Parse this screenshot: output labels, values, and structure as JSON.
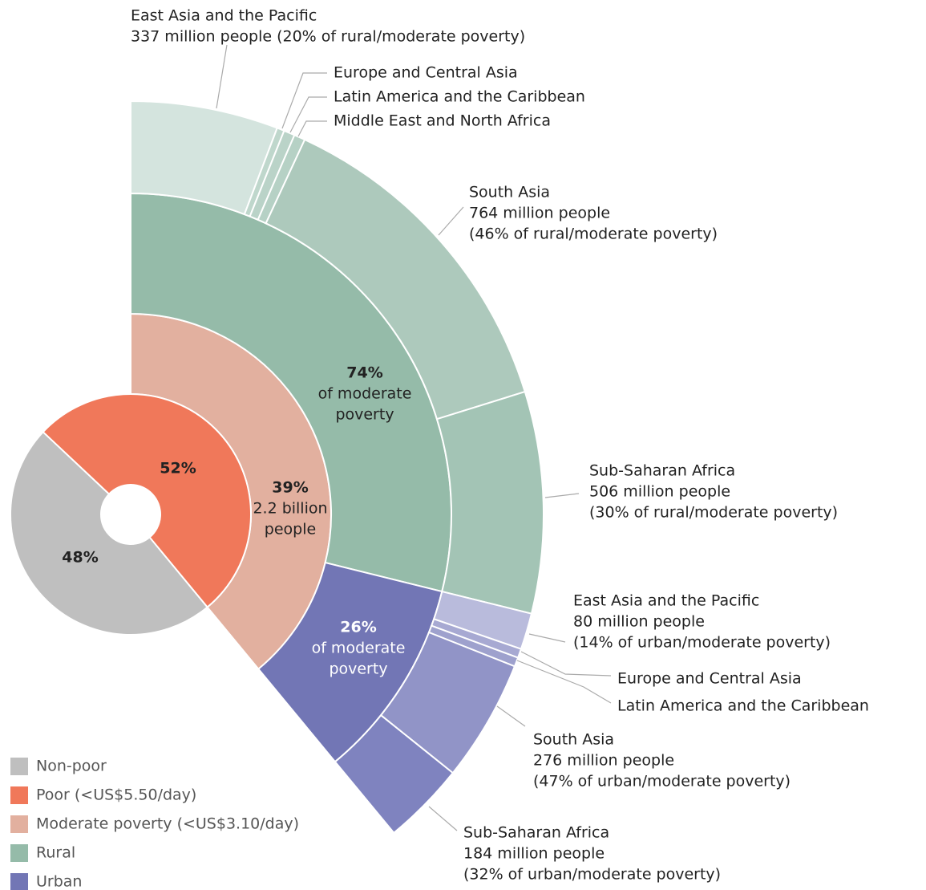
{
  "chart_data": {
    "type": "sunburst",
    "poverty": [
      {
        "name": "Non-poor",
        "color": "#bfbfbf",
        "value": 48,
        "value_label": "48%"
      },
      {
        "name": "Poor (<US$5.50/day)",
        "color": "#f0785a",
        "value": 52,
        "value_label": "52%"
      }
    ],
    "moderate": {
      "name": "Moderate poverty (<US$3.10/day)",
      "color": "#e2b09f",
      "value": 39,
      "value_label": "39%",
      "note": [
        "2.2 billion",
        "people"
      ]
    },
    "areas": [
      {
        "name": "Rural",
        "color": "#95bba9",
        "value": 74,
        "value_label": "74%",
        "note": [
          "of moderate",
          "poverty"
        ],
        "text_color": "#222222",
        "regions": [
          {
            "name": "East Asia and the Pacific",
            "color": "#d4e4de",
            "value": 20,
            "detail": [
              "337 million people (20% of rural/moderate poverty)"
            ]
          },
          {
            "name": "Europe and Central Asia",
            "color": "#bfd7cc",
            "value": 1,
            "detail": []
          },
          {
            "name": "Latin America and the Caribbean",
            "color": "#bad3c8",
            "value": 1.5,
            "detail": []
          },
          {
            "name": "Middle East and North Africa",
            "color": "#b6d1c5",
            "value": 1.5,
            "detail": []
          },
          {
            "name": "South Asia",
            "color": "#adc9bc",
            "value": 46,
            "detail": [
              "764 million people",
              "(46% of rural/moderate poverty)"
            ]
          },
          {
            "name": "Sub-Saharan Africa",
            "color": "#a3c4b5",
            "value": 30,
            "detail": [
              "506 million people",
              "(30% of rural/moderate poverty)"
            ]
          }
        ]
      },
      {
        "name": "Urban",
        "color": "#7276b5",
        "value": 26,
        "value_label": "26%",
        "note": [
          "of moderate",
          "poverty"
        ],
        "text_color": "#ffffff",
        "regions": [
          {
            "name": "East Asia and the Pacific",
            "color": "#b9bbdc",
            "value": 14,
            "detail": [
              "80 million people",
              "(14% of urban/moderate poverty)"
            ]
          },
          {
            "name": "Europe and Central Asia",
            "color": "#a7a9d2",
            "value": 3.5,
            "detail": []
          },
          {
            "name": "Latin America and the Caribbean",
            "color": "#9ea1cd",
            "value": 3.5,
            "detail": []
          },
          {
            "name": "South Asia",
            "color": "#9194c7",
            "value": 47,
            "detail": [
              "276 million people",
              "(47% of urban/moderate poverty)"
            ]
          },
          {
            "name": "Sub-Saharan Africa",
            "color": "#7f83bf",
            "value": 32,
            "detail": [
              "184 million people",
              "(32% of urban/moderate poverty)"
            ]
          }
        ]
      }
    ]
  }
}
